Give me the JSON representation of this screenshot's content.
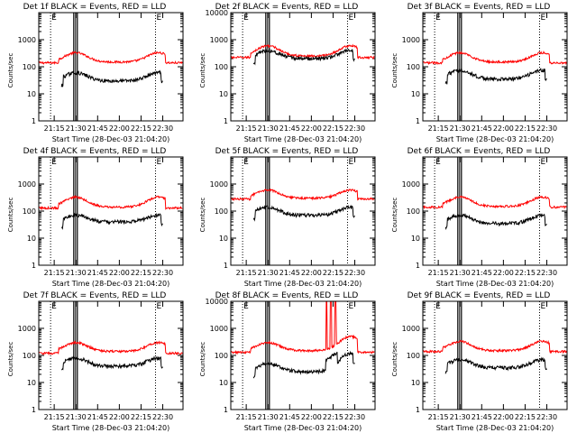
{
  "colors": {
    "events": "#000000",
    "lld": "#ff0000",
    "axis": "#000000"
  },
  "common": {
    "xlabel": "Start Time (28-Dec-03 21:04:20)",
    "ylabel": "Counts/sec",
    "xticks": [
      "21:15",
      "21:30",
      "21:45",
      "22:00",
      "22:15",
      "22:30"
    ],
    "xtick_minutes": [
      15,
      30,
      45,
      60,
      75,
      90
    ],
    "xlim_minutes": [
      4.33,
      104.0
    ],
    "ylim": [
      1,
      10000
    ],
    "yscale": "log",
    "marker_label": "E",
    "dotted_lines_minutes": [
      12.5,
      85.0
    ],
    "E_marker_minutes": [
      12.5,
      85.0
    ]
  },
  "chart_data": [
    {
      "type": "line",
      "title": "Det 1f BLACK = Events, RED = LLD",
      "yticks": [
        "1000",
        "100",
        "10",
        "1"
      ],
      "events_range": [
        20,
        90
      ],
      "events_levels": [
        60,
        30,
        60
      ],
      "lld_levels": [
        330,
        150,
        330
      ],
      "lld_base": 140,
      "gap_minutes": [
        28.5,
        31.0
      ]
    },
    {
      "type": "line",
      "title": "Det 2f BLACK = Events, RED = LLD",
      "yticks": [
        "10000",
        "1000",
        "100",
        "10",
        "1"
      ],
      "events_range": [
        20,
        90
      ],
      "events_levels": [
        400,
        200,
        400
      ],
      "lld_levels": [
        600,
        250,
        600
      ],
      "lld_base": 220,
      "gap_minutes": [
        28.5,
        31.0
      ]
    },
    {
      "type": "line",
      "title": "Det 3f BLACK = Events, RED = LLD",
      "yticks": [
        "1000",
        "100",
        "10",
        "1"
      ],
      "events_range": [
        20,
        90
      ],
      "events_levels": [
        75,
        35,
        75
      ],
      "lld_levels": [
        330,
        150,
        330
      ],
      "lld_base": 140,
      "gap_minutes": [
        28.5,
        31.0
      ]
    },
    {
      "type": "line",
      "title": "Det 4f BLACK = Events, RED = LLD",
      "yticks": [
        "1000",
        "100",
        "10",
        "1"
      ],
      "events_range": [
        20,
        90
      ],
      "events_levels": [
        70,
        40,
        70
      ],
      "lld_levels": [
        330,
        140,
        330
      ],
      "lld_base": 130,
      "gap_minutes": [
        28.5,
        31.0
      ]
    },
    {
      "type": "line",
      "title": "Det 5f BLACK = Events, RED = LLD",
      "yticks": [
        "1000",
        "100",
        "10",
        "1"
      ],
      "events_range": [
        20,
        90
      ],
      "events_levels": [
        140,
        70,
        140
      ],
      "lld_levels": [
        600,
        300,
        600
      ],
      "lld_base": 280,
      "gap_minutes": [
        28.5,
        31.0
      ]
    },
    {
      "type": "line",
      "title": "Det 6f BLACK = Events, RED = LLD",
      "yticks": [
        "1000",
        "100",
        "10",
        "1"
      ],
      "events_range": [
        20,
        90
      ],
      "events_levels": [
        70,
        35,
        70
      ],
      "lld_levels": [
        330,
        150,
        330
      ],
      "lld_base": 140,
      "gap_minutes": [
        28.5,
        31.0
      ]
    },
    {
      "type": "line",
      "title": "Det 7f BLACK = Events, RED = LLD",
      "yticks": [
        "1000",
        "100",
        "10",
        "1"
      ],
      "events_range": [
        20,
        90
      ],
      "events_levels": [
        80,
        40,
        80
      ],
      "lld_levels": [
        300,
        140,
        300
      ],
      "lld_base": 120,
      "gap_minutes": [
        28.5,
        31.0
      ]
    },
    {
      "type": "line",
      "title": "Det 8f BLACK = Events, RED = LLD",
      "yticks": [
        "10000",
        "1000",
        "100",
        "10",
        "1"
      ],
      "events_range": [
        20,
        90
      ],
      "events_levels": [
        50,
        25,
        120
      ],
      "lld_levels": [
        300,
        150,
        500
      ],
      "lld_base": 130,
      "gap_minutes": [
        28.5,
        31.0
      ],
      "spike_minutes": [
        70.5,
        73.5,
        76.5
      ],
      "spike_value": 10000
    },
    {
      "type": "line",
      "title": "Det 9f BLACK = Events, RED = LLD",
      "yticks": [
        "1000",
        "100",
        "10",
        "1"
      ],
      "events_range": [
        20,
        90
      ],
      "events_levels": [
        70,
        35,
        70
      ],
      "lld_levels": [
        330,
        150,
        330
      ],
      "lld_base": 140,
      "gap_minutes": [
        28.5,
        31.0
      ]
    }
  ]
}
